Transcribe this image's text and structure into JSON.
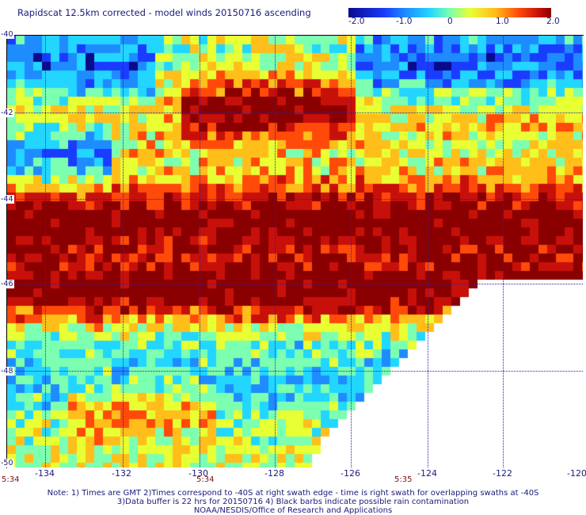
{
  "title": "Rapidscat 12.5km corrected - model winds 20150716 ascending",
  "colorbar": {
    "ticks": [
      "-2.0",
      "-1.0",
      "0",
      "1.0",
      "2.0"
    ],
    "colors": [
      "#0a0a8c",
      "#1a3cff",
      "#1e8cff",
      "#22d6ff",
      "#7cffb0",
      "#e8ff34",
      "#ffbe1a",
      "#ff4a0a",
      "#c8100a",
      "#8a0000"
    ]
  },
  "map": {
    "latitude_labels": [
      "-40",
      "-42",
      "-44",
      "-46",
      "-48",
      "-50"
    ],
    "longitude_labels": [
      "-134",
      "-132",
      "-130",
      "-128",
      "-126",
      "-124",
      "-122",
      "-120"
    ],
    "swath_times": [
      "5:34",
      "5:34",
      "5:35"
    ]
  },
  "notes": [
    "Note: 1) Times are GMT 2)Times correspond to -40S at right swath edge - time is right swath for overlapping swaths at -40S",
    "3)Data buffer is 22 hrs for 20150716 4) Black barbs indicate possible rain contamination",
    "NOAA/NESDIS/Office of Research and Applications"
  ]
}
